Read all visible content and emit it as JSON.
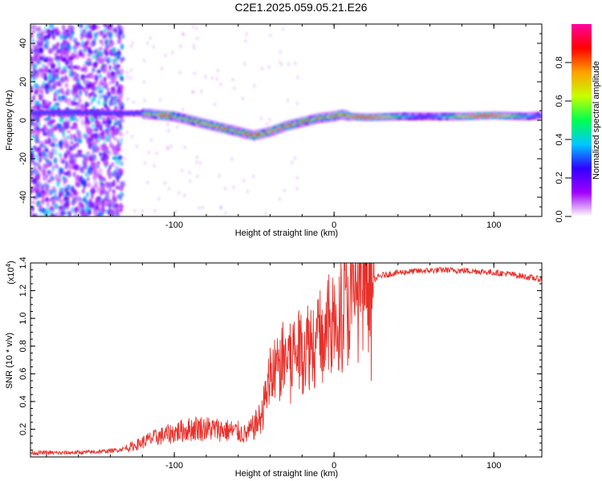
{
  "figure_title": "C2E1.2025.059.05.21.E26",
  "chart_data": [
    {
      "type": "heatmap",
      "xlabel": "Height of straight line (km)",
      "ylabel": "Frequency (Hz)",
      "xlim": [
        -190,
        130
      ],
      "ylim": [
        -50,
        50
      ],
      "x_ticks": [
        -100,
        0,
        100
      ],
      "y_ticks": [
        -40,
        -20,
        0,
        20,
        40
      ],
      "colorbar": {
        "label": "Normalized spectral amplitude",
        "range": [
          0,
          1
        ],
        "ticks": [
          "0.0",
          "0.2",
          "0.4",
          "0.6",
          "0.8"
        ],
        "colors": [
          "#ffffff",
          "#a000ff",
          "#3000ff",
          "#00c8ff",
          "#00ff50",
          "#c8ff00",
          "#ffa000",
          "#ff0000",
          "#ff00a0"
        ]
      },
      "signal_ridge": {
        "x": [
          -190,
          -150,
          -120,
          -100,
          -85,
          -75,
          -65,
          -55,
          -50,
          -40,
          -30,
          -20,
          -10,
          0,
          5,
          10,
          20,
          40,
          60,
          80,
          100,
          120,
          130
        ],
        "frequency": [
          4,
          4,
          3.5,
          2,
          -1,
          -3,
          -5,
          -7,
          -8,
          -6,
          -3,
          -1,
          1,
          2,
          3,
          2,
          1.5,
          2,
          2,
          2,
          2.5,
          2,
          2.5
        ]
      }
    },
    {
      "type": "line",
      "xlabel": "Height of straight line (km)",
      "ylabel": "SNR (10 * v/v)",
      "y_multiplier": "(x10",
      "y_multiplier_exp": "4",
      "y_multiplier_close": ")",
      "xlim": [
        -190,
        130
      ],
      "ylim": [
        0,
        14000
      ],
      "x_ticks": [
        -100,
        0,
        100
      ],
      "y_ticks": [
        "0.2",
        "0.4",
        "0.6",
        "0.8",
        "1.0",
        "1.2",
        "1.4"
      ],
      "series_color": "#e8302a",
      "series": [
        {
          "x": [
            -190,
            -170,
            -150,
            -135,
            -125,
            -115,
            -105,
            -95,
            -85,
            -75,
            -65,
            -60,
            -55,
            -50,
            -45,
            -42,
            -40,
            -35,
            -30,
            -25,
            -20,
            -15,
            -10,
            -5,
            0,
            5,
            10,
            15,
            20,
            25,
            30,
            40,
            50,
            60,
            70,
            80,
            90,
            100,
            110,
            120,
            130
          ],
          "y": [
            300,
            300,
            350,
            500,
            800,
            1300,
            1600,
            1900,
            2100,
            2000,
            1900,
            1800,
            1600,
            2200,
            3000,
            5000,
            5800,
            6500,
            7200,
            7500,
            7800,
            8300,
            8500,
            9000,
            9800,
            10500,
            11200,
            11800,
            12300,
            12800,
            13100,
            13300,
            13400,
            13450,
            13500,
            13450,
            13400,
            13300,
            13200,
            13000,
            12800
          ]
        }
      ]
    }
  ]
}
